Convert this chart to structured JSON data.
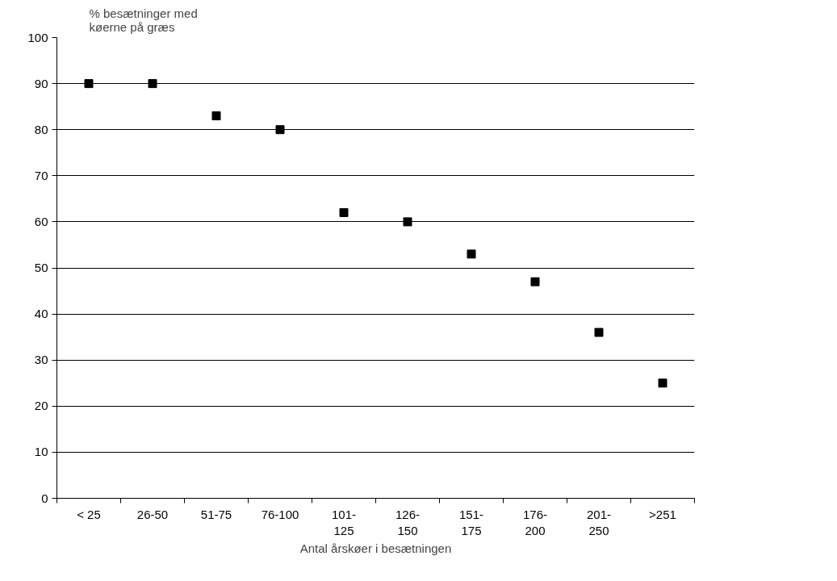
{
  "chart_data": {
    "type": "scatter",
    "ylabel": "% besætninger med\nkøerne på græs",
    "xlabel": "Antal årskøer i besætningen",
    "categories": [
      "< 25",
      "26-50",
      "51-75",
      "76-100",
      "101-125",
      "126-150",
      "151-175",
      "176-200",
      "201-250",
      ">251"
    ],
    "series": [
      {
        "color": "#000000",
        "values": [
          90,
          90,
          83,
          80,
          62,
          60,
          53,
          47,
          36,
          25
        ]
      }
    ],
    "ylim": [
      0,
      100
    ],
    "yticks": [
      0,
      10,
      20,
      30,
      40,
      50,
      60,
      70,
      80,
      90,
      100
    ],
    "grid": "y",
    "marker": "square"
  }
}
